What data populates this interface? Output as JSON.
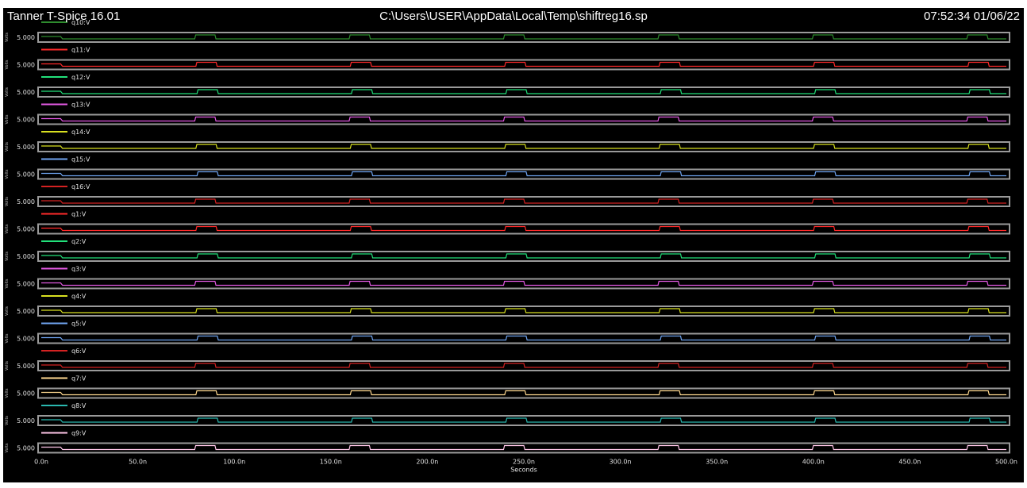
{
  "header": {
    "app_title": "Tanner T-Spice 16.01",
    "file_path": "C:\\Users\\USER\\AppData\\Local\\Temp\\shiftreg16.sp",
    "timestamp": "07:52:34 01/06/22"
  },
  "chart_data": {
    "type": "line",
    "title": "",
    "xlabel": "Seconds",
    "ylabel": "Volts",
    "xlim": [
      0,
      500
    ],
    "x_unit": "n",
    "x_ticks": [
      "0.0n",
      "50.0n",
      "100.0n",
      "150.0n",
      "200.0n",
      "250.0n",
      "300.0n",
      "350.0n",
      "400.0n",
      "450.0n",
      "500.0n"
    ],
    "y_tick_label": "5.000",
    "y_axis_label": "Volts",
    "background": "#000000",
    "pulse_x_n": [
      [
        80,
        90
      ],
      [
        160,
        170
      ],
      [
        240,
        250
      ],
      [
        320,
        330
      ],
      [
        400,
        410
      ],
      [
        480,
        490
      ]
    ],
    "series": [
      {
        "name": "q10:V",
        "color": "#2e8b2e"
      },
      {
        "name": "q11:V",
        "color": "#ff2a2a"
      },
      {
        "name": "q12:V",
        "color": "#22e07a"
      },
      {
        "name": "q13:V",
        "color": "#e35ae3"
      },
      {
        "name": "q14:V",
        "color": "#d8e020"
      },
      {
        "name": "q15:V",
        "color": "#6fa4f0"
      },
      {
        "name": "q16:V",
        "color": "#d42222"
      },
      {
        "name": "q1:V",
        "color": "#ff2a2a"
      },
      {
        "name": "q2:V",
        "color": "#22e07a"
      },
      {
        "name": "q3:V",
        "color": "#e35ae3"
      },
      {
        "name": "q4:V",
        "color": "#d8e020"
      },
      {
        "name": "q5:V",
        "color": "#6fa4f0"
      },
      {
        "name": "q6:V",
        "color": "#d42222"
      },
      {
        "name": "q7:V",
        "color": "#ffd990"
      },
      {
        "name": "q8:V",
        "color": "#2ab8b0"
      },
      {
        "name": "q9:V",
        "color": "#ffc6e8"
      }
    ]
  }
}
